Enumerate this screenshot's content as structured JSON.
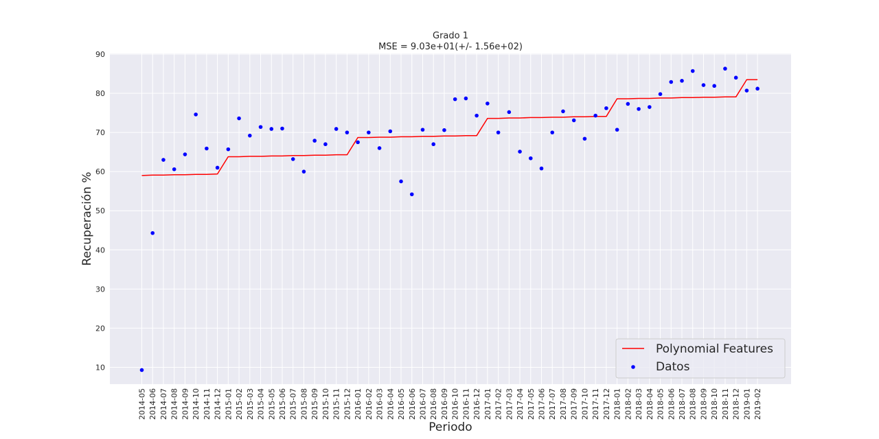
{
  "chart_data": {
    "type": "scatter",
    "title": "Grado 1",
    "subtitle": "MSE = 9.03e+01(+/- 1.56e+02)",
    "xlabel": "Periodo",
    "ylabel": "Recuperación %",
    "ylim": [
      5,
      90
    ],
    "yticks": [
      10,
      20,
      30,
      40,
      50,
      60,
      70,
      80,
      90
    ],
    "grid": true,
    "legend_position": "bottom-right",
    "categories": [
      "2014-05",
      "2014-06",
      "2014-07",
      "2014-08",
      "2014-09",
      "2014-10",
      "2014-11",
      "2014-12",
      "2015-01",
      "2015-02",
      "2015-03",
      "2015-04",
      "2015-05",
      "2015-06",
      "2015-07",
      "2015-08",
      "2015-09",
      "2015-10",
      "2015-11",
      "2015-12",
      "2016-01",
      "2016-02",
      "2016-03",
      "2016-04",
      "2016-05",
      "2016-06",
      "2016-07",
      "2016-08",
      "2016-09",
      "2016-10",
      "2016-11",
      "2016-12",
      "2017-01",
      "2017-02",
      "2017-03",
      "2017-04",
      "2017-05",
      "2017-06",
      "2017-07",
      "2017-08",
      "2017-09",
      "2017-10",
      "2017-11",
      "2017-12",
      "2018-01",
      "2018-02",
      "2018-03",
      "2018-04",
      "2018-05",
      "2018-06",
      "2018-07",
      "2018-08",
      "2018-09",
      "2018-10",
      "2018-11",
      "2018-12",
      "2019-01",
      "2019-02"
    ],
    "series": [
      {
        "name": "Polynomial Features",
        "kind": "line",
        "color": "#ff0000",
        "values": [
          59.0,
          59.1,
          59.1,
          59.2,
          59.2,
          59.3,
          59.3,
          59.4,
          63.8,
          63.8,
          63.9,
          63.9,
          64.0,
          64.0,
          64.1,
          64.1,
          64.2,
          64.2,
          64.3,
          64.3,
          68.7,
          68.7,
          68.8,
          68.8,
          68.9,
          68.9,
          69.0,
          69.0,
          69.1,
          69.1,
          69.2,
          69.2,
          73.6,
          73.6,
          73.7,
          73.7,
          73.8,
          73.8,
          73.9,
          73.9,
          74.0,
          74.0,
          74.1,
          74.1,
          78.6,
          78.6,
          78.7,
          78.7,
          78.8,
          78.8,
          78.9,
          78.9,
          79.0,
          79.0,
          79.1,
          79.1,
          83.5,
          83.5
        ]
      },
      {
        "name": "Datos",
        "kind": "scatter",
        "color": "#0000ff",
        "values": [
          9.3,
          44.3,
          63.0,
          60.6,
          64.4,
          74.6,
          65.9,
          61.0,
          65.7,
          73.6,
          69.2,
          71.4,
          70.9,
          71.0,
          63.2,
          60.0,
          67.9,
          67.0,
          70.9,
          70.0,
          67.5,
          70.0,
          66.0,
          70.3,
          57.5,
          54.2,
          70.7,
          67.0,
          70.6,
          78.5,
          78.7,
          74.3,
          77.4,
          70.0,
          75.2,
          65.1,
          63.4,
          60.8,
          70.0,
          75.4,
          73.1,
          68.4,
          74.3,
          76.2,
          70.7,
          77.3,
          76.0,
          76.5,
          79.8,
          82.9,
          83.2,
          85.7,
          82.1,
          81.9,
          86.3,
          84.0,
          80.7,
          81.2
        ]
      }
    ]
  }
}
